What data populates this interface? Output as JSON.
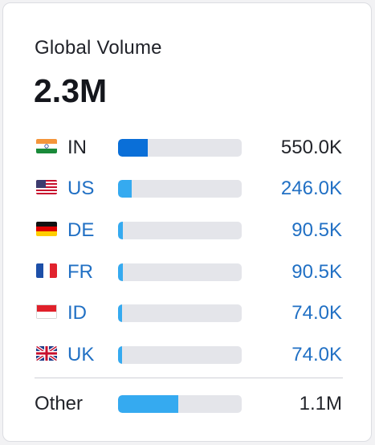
{
  "widget": {
    "title": "Global Volume",
    "total": "2.3M"
  },
  "countries": [
    {
      "code": "IN",
      "value": "550.0K",
      "share": 0.24,
      "flag": "india-flag",
      "bar_color": "#0a6fd8",
      "link": false
    },
    {
      "code": "US",
      "value": "246.0K",
      "share": 0.11,
      "flag": "usa-flag",
      "bar_color": "#35aaf0",
      "link": true
    },
    {
      "code": "DE",
      "value": "90.5K",
      "share": 0.04,
      "flag": "germany-flag",
      "bar_color": "#35aaf0",
      "link": true
    },
    {
      "code": "FR",
      "value": "90.5K",
      "share": 0.04,
      "flag": "france-flag",
      "bar_color": "#35aaf0",
      "link": true
    },
    {
      "code": "ID",
      "value": "74.0K",
      "share": 0.03,
      "flag": "indonesia-flag",
      "bar_color": "#35aaf0",
      "link": true
    },
    {
      "code": "UK",
      "value": "74.0K",
      "share": 0.03,
      "flag": "uk-flag",
      "bar_color": "#35aaf0",
      "link": true
    }
  ],
  "other": {
    "label": "Other",
    "value": "1.1M",
    "share": 0.49,
    "bar_color": "#35aaf0"
  },
  "colors": {
    "link": "#2170c4",
    "track": "#e4e5ea"
  }
}
